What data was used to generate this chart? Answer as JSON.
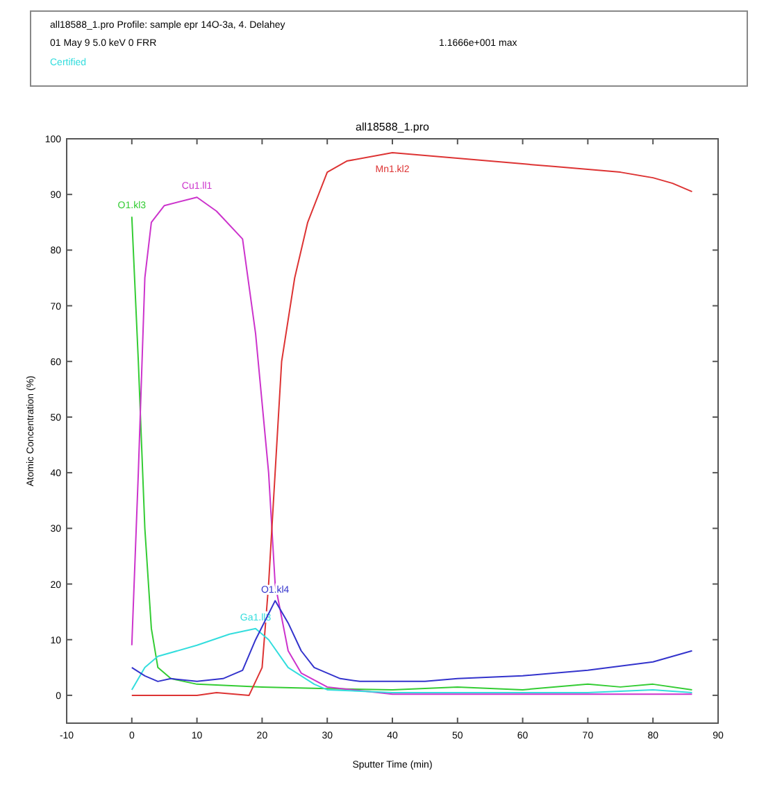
{
  "chart_data": {
    "type": "line",
    "title": "all18588_1.pro",
    "xlabel": "Sputter Time (min)",
    "ylabel": "Atomic Concentration (%)",
    "xlim": [
      -10,
      90
    ],
    "xticks": [
      -10,
      0,
      10,
      20,
      30,
      40,
      50,
      60,
      70,
      80,
      90
    ],
    "ylim": [
      -5,
      100
    ],
    "yticks": [
      0,
      10,
      20,
      30,
      40,
      50,
      60,
      70,
      80,
      90,
      100
    ],
    "grid": false,
    "marker": "none",
    "line_style": "solid",
    "annotations": [
      "all18588_1.pro  Profile: sample epr 14O-3a, 4. Delahey",
      "01 May 9  5.0 keV  0  FRR",
      "1.1666e+001 max",
      "Certified"
    ],
    "series": [
      {
        "name": "O1.kl3",
        "color": "#33cc33",
        "x": [
          0,
          1,
          2,
          3,
          4,
          6,
          10,
          20,
          30,
          40,
          50,
          60,
          70,
          75,
          80,
          86
        ],
        "values": [
          86,
          60,
          30,
          12,
          5,
          3,
          2,
          1.5,
          1.2,
          1,
          1.5,
          1,
          2,
          1.5,
          2,
          1
        ]
      },
      {
        "name": "Cu1.ll1",
        "color": "#cc33cc",
        "x": [
          0,
          1,
          2,
          3,
          5,
          10,
          13,
          17,
          19,
          21,
          22,
          24,
          26,
          30,
          40,
          50,
          60,
          70,
          80,
          86
        ],
        "values": [
          9,
          40,
          75,
          85,
          88,
          89.5,
          87,
          82,
          65,
          40,
          20,
          8,
          4,
          1.5,
          0.2,
          0.2,
          0.2,
          0.2,
          0.2,
          0.2
        ]
      },
      {
        "name": "Mn1.kl2",
        "color": "#dd3333",
        "x": [
          0,
          10,
          13,
          18,
          20,
          21,
          22,
          23,
          25,
          27,
          30,
          33,
          40,
          45,
          50,
          55,
          60,
          65,
          70,
          75,
          80,
          83,
          86
        ],
        "values": [
          0,
          0,
          0.5,
          0,
          5,
          20,
          40,
          60,
          75,
          85,
          94,
          96,
          97.5,
          97,
          96.5,
          96,
          95.5,
          95,
          94.5,
          94,
          93,
          92,
          90.5
        ]
      },
      {
        "name": "Ga1.ll3",
        "color": "#33dddd",
        "x": [
          0,
          2,
          4,
          10,
          15,
          19,
          21,
          24,
          28,
          30,
          40,
          50,
          60,
          70,
          80,
          86
        ],
        "values": [
          1,
          5,
          7,
          9,
          11,
          12,
          10,
          5,
          2,
          1,
          0.5,
          0.5,
          0.5,
          0.5,
          1,
          0.5
        ]
      },
      {
        "name": "O1.kl4",
        "color": "#3333cc",
        "x": [
          0,
          2,
          4,
          6,
          10,
          14,
          17,
          19,
          22,
          24,
          26,
          28,
          32,
          35,
          40,
          45,
          50,
          60,
          70,
          80,
          86
        ],
        "values": [
          5,
          3.5,
          2.5,
          3,
          2.5,
          3,
          4.5,
          10,
          17,
          13,
          8,
          5,
          3,
          2.5,
          2.5,
          2.5,
          3,
          3.5,
          4.5,
          6,
          8
        ]
      }
    ]
  }
}
